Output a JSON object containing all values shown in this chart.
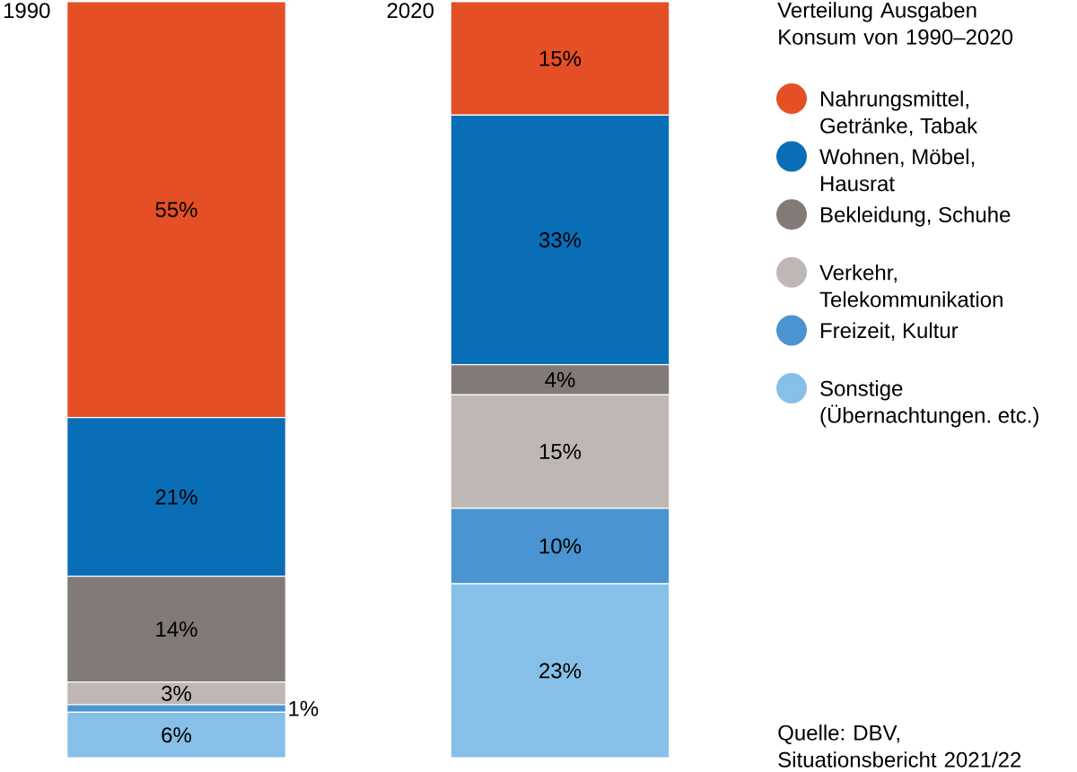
{
  "chart_data": {
    "type": "bar",
    "stacked": true,
    "title": "Verteilung Ausgaben Konsum von 1990–2020",
    "categories": [
      "1990",
      "2020"
    ],
    "series": [
      {
        "name": "Sonstige (Übernachtungen. etc.)",
        "color": "#86c0e8",
        "values": [
          6,
          23
        ],
        "value_labels": [
          "6%",
          "23%"
        ]
      },
      {
        "name": "Freizeit, Kultur",
        "color": "#4a95d1",
        "values": [
          1,
          10
        ],
        "value_labels": [
          "1%",
          "10%"
        ]
      },
      {
        "name": "Verkehr, Telekommunikation",
        "color": "#bfb7b3",
        "values": [
          3,
          15
        ],
        "value_labels": [
          "3%",
          "15%"
        ]
      },
      {
        "name": "Bekleidung, Schuhe",
        "color": "#827a77",
        "values": [
          14,
          4
        ],
        "value_labels": [
          "14%",
          "4%"
        ]
      },
      {
        "name": "Wohnen, Möbel, Hausrat",
        "color": "#0a6eb7",
        "values": [
          21,
          33
        ],
        "value_labels": [
          "21%",
          "33%"
        ]
      },
      {
        "name": "Nahrungsmittel, Getränke, Tabak",
        "color": "#e54f25",
        "values": [
          55,
          15
        ],
        "value_labels": [
          "55%",
          "15%"
        ]
      }
    ],
    "tick_labels": "x",
    "legend": "right",
    "annotations": [
      "Quelle: DBV, Situationsbericht 2021/22"
    ]
  }
}
